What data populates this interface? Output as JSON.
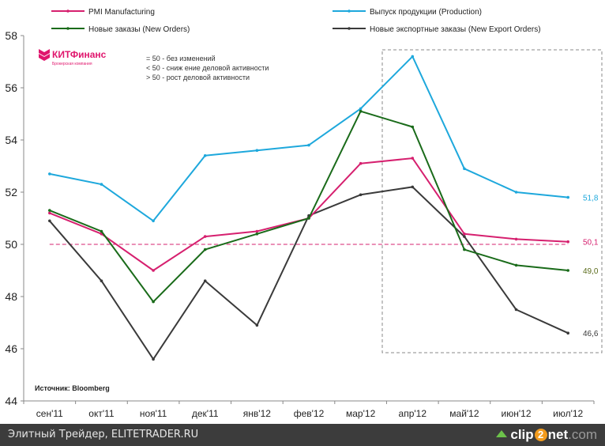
{
  "chart_data": {
    "type": "line",
    "title": "",
    "xlabel": "",
    "ylabel": "",
    "ylim": [
      44,
      58
    ],
    "yticks": [
      "44",
      "46",
      "48",
      "50",
      "52",
      "54",
      "56",
      "58"
    ],
    "ytick_values": [
      44,
      46,
      48,
      50,
      52,
      54,
      56,
      58
    ],
    "categories": [
      "сен'11",
      "окт'11",
      "ноя'11",
      "дек'11",
      "янв'12",
      "фев'12",
      "мар'12",
      "апр'12",
      "май'12",
      "июн'12",
      "июл'12"
    ],
    "reference_line": 50,
    "series": [
      {
        "name": "PMI Manufacturing",
        "color": "#d6206f",
        "values": [
          51.2,
          50.4,
          49.0,
          50.3,
          50.5,
          51.0,
          53.1,
          53.3,
          50.4,
          50.2,
          50.1
        ],
        "end_label": "50,1"
      },
      {
        "name": "Выпуск продукции (Production)",
        "color": "#1ea8dc",
        "values": [
          52.7,
          52.3,
          50.9,
          53.4,
          53.6,
          53.8,
          55.2,
          57.2,
          52.9,
          52.0,
          51.8
        ],
        "end_label": "51,8"
      },
      {
        "name": "Новые заказы (New Orders)",
        "color": "#1a6b1a",
        "values": [
          51.3,
          50.5,
          47.8,
          49.8,
          50.4,
          51.0,
          55.1,
          54.5,
          49.8,
          49.2,
          49.0
        ],
        "end_label": "49,0"
      },
      {
        "name": "Новые экспортные заказы (New Export Orders)",
        "color": "#3a3a3a",
        "values": [
          50.9,
          48.6,
          45.6,
          48.6,
          46.9,
          51.1,
          51.9,
          52.2,
          50.3,
          47.5,
          46.6
        ],
        "end_label": "46,6"
      }
    ],
    "end_label_colors": [
      "#d6206f",
      "#1ea8dc",
      "#5a6b1a",
      "#3a3a3a"
    ],
    "legend": "top",
    "highlight_range": [
      "апр'12",
      "июл'12"
    ],
    "annotations": {
      "notes": [
        "= 50 -  без изменений",
        "< 50 -  сниж ение деловой активности",
        "> 50 -  рост деловой активности"
      ],
      "source": "Источник: Bloomberg"
    }
  },
  "logo": {
    "name": "КИТФинанс",
    "sub": "Брокерская компания",
    "color": "#e0166d"
  },
  "footer": {
    "text": "Элитный Трейдер, ELITETRADER.RU",
    "clip_logo": {
      "a": "clip",
      "two": "2",
      "b": "net",
      "c": ".com"
    }
  }
}
